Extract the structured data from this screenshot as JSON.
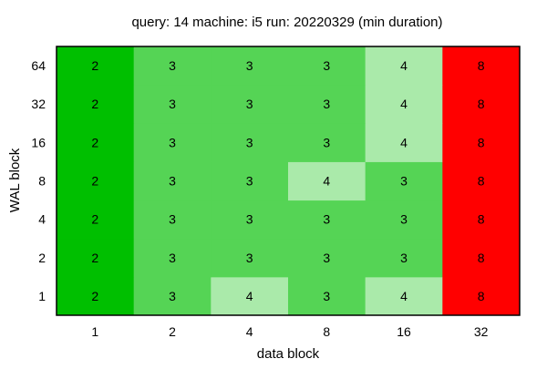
{
  "chart_data": {
    "type": "heatmap",
    "title": "query: 14  machine: i5  run: 20220329  (min duration)",
    "xlabel": "data block",
    "ylabel": "WAL block",
    "x": [
      "1",
      "2",
      "4",
      "8",
      "16",
      "32"
    ],
    "y": [
      "1",
      "2",
      "4",
      "8",
      "16",
      "32",
      "64"
    ],
    "values": [
      [
        2,
        3,
        4,
        3,
        4,
        8
      ],
      [
        2,
        3,
        3,
        3,
        3,
        8
      ],
      [
        2,
        3,
        3,
        3,
        3,
        8
      ],
      [
        2,
        3,
        3,
        4,
        3,
        8
      ],
      [
        2,
        3,
        3,
        3,
        4,
        8
      ],
      [
        2,
        3,
        3,
        3,
        4,
        8
      ],
      [
        2,
        3,
        3,
        3,
        4,
        8
      ]
    ],
    "color_scale": {
      "2": "#00bf00",
      "3": "#55d455",
      "4": "#aaeaaa",
      "8": "#ff0000"
    },
    "grid": false,
    "legend": "none"
  }
}
